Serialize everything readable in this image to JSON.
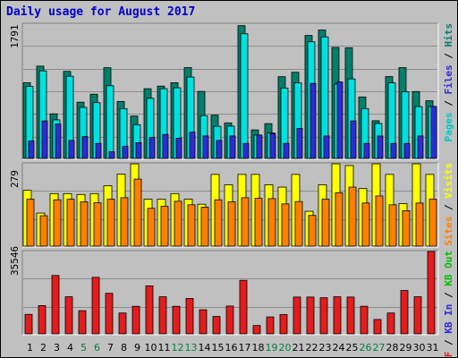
{
  "title": "Daily usage for August 2017",
  "colors": {
    "hits": "#007f6a",
    "files": "#00e0e0",
    "pages": "#2c2cd8",
    "visits": "#ffff00",
    "sites": "#ff8000",
    "kbytes": "#e41c1c",
    "weekend": "#007f3f",
    "weekday": "#000000",
    "panel": "#c0c0c0",
    "frame": "#ffffff"
  },
  "chart_data": [
    {
      "type": "bar",
      "name": "hits-files-pages",
      "ymax_label": "1791",
      "legend": [
        {
          "text": "Pages",
          "color": "#00c8c8"
        },
        {
          "text": " / ",
          "color": "#000000"
        },
        {
          "text": "Files",
          "color": "#2c2cd8"
        },
        {
          "text": " / ",
          "color": "#000000"
        },
        {
          "text": "Hits",
          "color": "#007f6a"
        }
      ],
      "categories": [
        "1",
        "2",
        "3",
        "4",
        "5",
        "6",
        "7",
        "8",
        "9",
        "10",
        "11",
        "12",
        "13",
        "14",
        "15",
        "16",
        "17",
        "18",
        "19",
        "20",
        "21",
        "22",
        "23",
        "24",
        "25",
        "26",
        "27",
        "28",
        "29",
        "30",
        "31"
      ],
      "series": [
        {
          "key": "hits",
          "values": [
            1010,
            1231,
            595,
            1161,
            750,
            857,
            1210,
            760,
            565,
            930,
            965,
            1010,
            1211,
            894,
            577,
            474,
            1771,
            380,
            464,
            1090,
            1149,
            1640,
            1713,
            1481,
            1476,
            820,
            503,
            1091,
            1211,
            892,
            769
          ]
        },
        {
          "key": "files",
          "values": [
            960,
            1168,
            514,
            1097,
            681,
            744,
            970,
            664,
            450,
            802,
            930,
            942,
            1086,
            571,
            428,
            431,
            1663,
            312,
            340,
            939,
            1008,
            1556,
            1622,
            993,
            1061,
            665,
            466,
            1008,
            888,
            692,
            693
          ]
        },
        {
          "key": "pages",
          "values": [
            232,
            500,
            460,
            240,
            290,
            200,
            90,
            160,
            210,
            280,
            320,
            270,
            350,
            300,
            240,
            300,
            200,
            312,
            330,
            200,
            400,
            1000,
            300,
            1020,
            500,
            200,
            300,
            200,
            200,
            300,
            693
          ]
        }
      ]
    },
    {
      "type": "bar",
      "name": "visits-sites",
      "ymax_label": "279",
      "legend": [
        {
          "text": "Sites",
          "color": "#ff8000"
        },
        {
          "text": " / ",
          "color": "#000000"
        },
        {
          "text": "Visits",
          "color": "#ffff00"
        }
      ],
      "categories": [
        "1",
        "2",
        "3",
        "4",
        "5",
        "6",
        "7",
        "8",
        "9",
        "10",
        "11",
        "12",
        "13",
        "14",
        "15",
        "16",
        "17",
        "18",
        "19",
        "20",
        "21",
        "22",
        "23",
        "24",
        "25",
        "26",
        "27",
        "28",
        "29",
        "30",
        "31"
      ],
      "series": [
        {
          "key": "visits",
          "values": [
            189,
            112,
            178,
            178,
            175,
            178,
            205,
            244,
            279,
            159,
            159,
            178,
            159,
            142,
            243,
            208,
            243,
            243,
            208,
            200,
            243,
            118,
            208,
            279,
            273,
            195,
            279,
            243,
            144,
            279,
            243
          ]
        },
        {
          "key": "sites",
          "values": [
            159,
            103,
            157,
            159,
            150,
            147,
            159,
            164,
            227,
            128,
            135,
            152,
            140,
            132,
            157,
            150,
            164,
            162,
            161,
            143,
            151,
            104,
            159,
            181,
            200,
            146,
            170,
            140,
            120,
            146,
            159
          ]
        }
      ]
    },
    {
      "type": "bar",
      "name": "kbytes",
      "ymax_label": "35546",
      "legend": [
        {
          "text": "KB F",
          "color": "#e41c1c"
        },
        {
          "text": " / ",
          "color": "#000000"
        },
        {
          "text": "KB In",
          "color": "#2c2cd8"
        },
        {
          "text": " / ",
          "color": "#000000"
        },
        {
          "text": "KB Out",
          "color": "#00c000"
        }
      ],
      "categories": [
        "1",
        "2",
        "3",
        "4",
        "5",
        "6",
        "7",
        "8",
        "9",
        "10",
        "11",
        "12",
        "13",
        "14",
        "15",
        "16",
        "17",
        "18",
        "19",
        "20",
        "21",
        "22",
        "23",
        "24",
        "25",
        "26",
        "27",
        "28",
        "29",
        "30",
        "31"
      ],
      "series": [
        {
          "key": "kbytes",
          "values": [
            8400,
            12200,
            25200,
            16000,
            10000,
            24400,
            17500,
            9000,
            11900,
            20700,
            16000,
            11900,
            15300,
            10400,
            7500,
            12000,
            23100,
            3600,
            7300,
            8300,
            15900,
            15900,
            15600,
            16000,
            15900,
            11900,
            6200,
            9000,
            18700,
            16000,
            35546
          ]
        }
      ]
    }
  ]
}
